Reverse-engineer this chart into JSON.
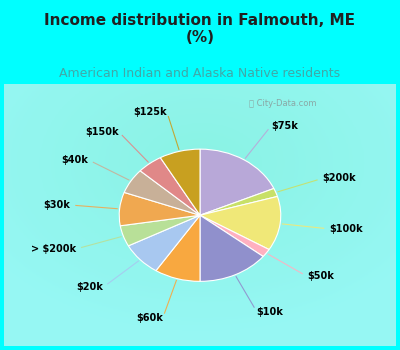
{
  "title": "Income distribution in Falmouth, ME\n(%)",
  "subtitle": "American Indian and Alaska Native residents",
  "watermark": "ⓘ City-Data.com",
  "background_fig": "#00ffff",
  "background_chart": "#d8f0e8",
  "labels": [
    "$75k",
    "$200k",
    "$100k",
    "$50k",
    "$10k",
    "$60k",
    "$20k",
    "> $200k",
    "$30k",
    "$40k",
    "$150k",
    "$125k"
  ],
  "values": [
    18,
    2,
    13,
    2,
    14,
    9,
    8,
    5,
    8,
    6,
    5,
    8
  ],
  "colors": [
    "#b8a8d8",
    "#c8e068",
    "#f0e878",
    "#ffb0c0",
    "#9090cc",
    "#f8a840",
    "#a8c8f0",
    "#b8e098",
    "#f0a850",
    "#c8b098",
    "#e08888",
    "#c8a020"
  ],
  "title_fontsize": 11,
  "subtitle_fontsize": 9,
  "subtitle_color": "#40a8a8",
  "title_color": "#202020",
  "label_fontsize": 7
}
